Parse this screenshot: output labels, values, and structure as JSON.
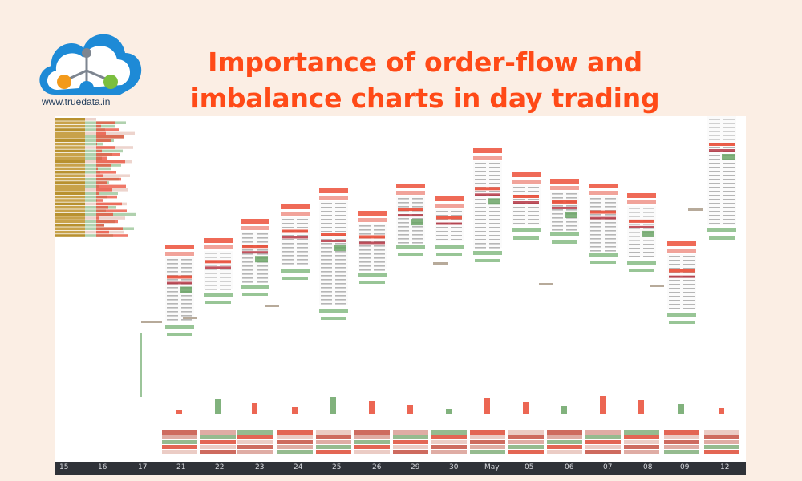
{
  "brand": {
    "site": "www.truedata.in",
    "logo_icon": "cloud-network-logo-icon",
    "colors": {
      "cloud": "#1e8ad6",
      "node_orange": "#f39a1b",
      "node_green": "#7bbf3f",
      "node_blue": "#1e8ad6"
    }
  },
  "title": {
    "line1": "Importance of order-flow and",
    "line2": "imbalance charts in day trading",
    "color": "#ff4a17"
  },
  "chart": {
    "colors": {
      "sell": "#e94b35",
      "buy": "#6ba566",
      "header": "#ef6a57",
      "footer": "#98c596",
      "profile": "#c8a24a",
      "axis_bg": "#2f3238"
    },
    "x_axis": [
      "15",
      "16",
      "17",
      "21",
      "22",
      "23",
      "24",
      "25",
      "26",
      "29",
      "30",
      "May",
      "05",
      "06",
      "07",
      "08",
      "09",
      "12"
    ]
  }
}
